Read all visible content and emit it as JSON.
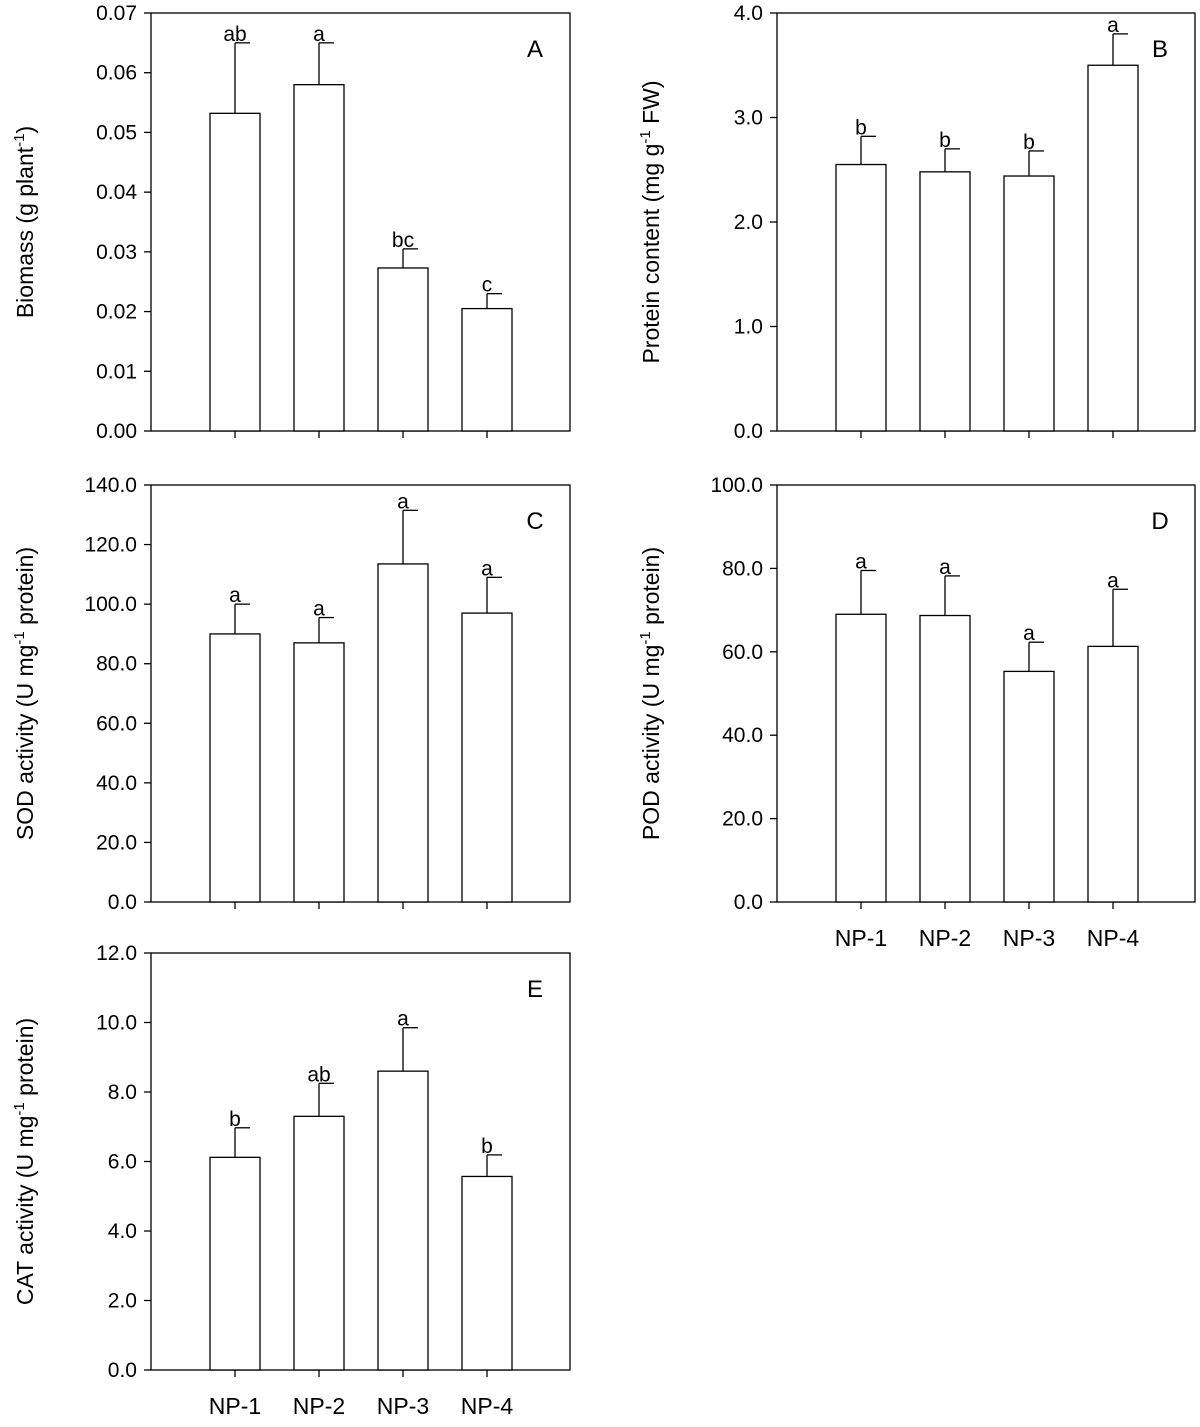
{
  "chart_data": [
    {
      "type": "bar",
      "panel": "A",
      "categories": [
        "NP-1",
        "NP-2",
        "NP-3",
        "NP-4"
      ],
      "values": [
        0.0532,
        0.058,
        0.0273,
        0.0205
      ],
      "errors": [
        0.0118,
        0.007,
        0.0032,
        0.0025
      ],
      "letters": [
        "ab",
        "a",
        "bc",
        "c"
      ],
      "ylabel": {
        "main": "Biomass (g plant",
        "sup": "-1",
        "tail": ")"
      },
      "ylim": [
        0,
        0.07
      ],
      "yticks": [
        "0.00",
        "0.01",
        "0.02",
        "0.03",
        "0.04",
        "0.05",
        "0.06",
        "0.07"
      ],
      "show_xlabels": false,
      "grid": false,
      "legend": "none"
    },
    {
      "type": "bar",
      "panel": "B",
      "categories": [
        "NP-1",
        "NP-2",
        "NP-3",
        "NP-4"
      ],
      "values": [
        2.55,
        2.48,
        2.44,
        3.5
      ],
      "errors": [
        0.27,
        0.22,
        0.24,
        0.3
      ],
      "letters": [
        "b",
        "b",
        "b",
        "a"
      ],
      "ylabel": {
        "main": "Protein content (mg g",
        "sup": "-1",
        "tail": " FW)"
      },
      "ylim": [
        0,
        4.0
      ],
      "yticks": [
        "0.0",
        "1.0",
        "2.0",
        "3.0",
        "4.0"
      ],
      "show_xlabels": false,
      "grid": false,
      "legend": "none"
    },
    {
      "type": "bar",
      "panel": "C",
      "categories": [
        "NP-1",
        "NP-2",
        "NP-3",
        "NP-4"
      ],
      "values": [
        90.0,
        87.0,
        113.5,
        97.0
      ],
      "errors": [
        10.0,
        8.5,
        18.0,
        12.0
      ],
      "letters": [
        "a",
        "a",
        "a",
        "a"
      ],
      "ylabel": {
        "main": "SOD activity (U mg",
        "sup": "-1",
        "tail": " protein)"
      },
      "ylim": [
        0,
        140.0
      ],
      "yticks": [
        "0.0",
        "20.0",
        "40.0",
        "60.0",
        "80.0",
        "100.0",
        "120.0",
        "140.0"
      ],
      "show_xlabels": false,
      "grid": false,
      "legend": "none"
    },
    {
      "type": "bar",
      "panel": "D",
      "categories": [
        "NP-1",
        "NP-2",
        "NP-3",
        "NP-4"
      ],
      "values": [
        69.0,
        68.7,
        55.3,
        61.3
      ],
      "errors": [
        10.5,
        9.5,
        7.0,
        13.7
      ],
      "letters": [
        "a",
        "a",
        "a",
        "a"
      ],
      "ylabel": {
        "main": "POD activity (U mg",
        "sup": "-1",
        "tail": " protein)"
      },
      "ylim": [
        0,
        100.0
      ],
      "yticks": [
        "0.0",
        "20.0",
        "40.0",
        "60.0",
        "80.0",
        "100.0"
      ],
      "show_xlabels": true,
      "grid": false,
      "legend": "none"
    },
    {
      "type": "bar",
      "panel": "E",
      "categories": [
        "NP-1",
        "NP-2",
        "NP-3",
        "NP-4"
      ],
      "values": [
        6.12,
        7.3,
        8.6,
        5.57
      ],
      "errors": [
        0.85,
        0.95,
        1.25,
        0.62
      ],
      "letters": [
        "b",
        "ab",
        "a",
        "b"
      ],
      "ylabel": {
        "main": "CAT activity (U mg",
        "sup": "-1",
        "tail": " protein)"
      },
      "ylim": [
        0,
        12.0
      ],
      "yticks": [
        "0.0",
        "2.0",
        "4.0",
        "6.0",
        "8.0",
        "10.0",
        "12.0"
      ],
      "show_xlabels": true,
      "grid": false,
      "legend": "none"
    }
  ]
}
